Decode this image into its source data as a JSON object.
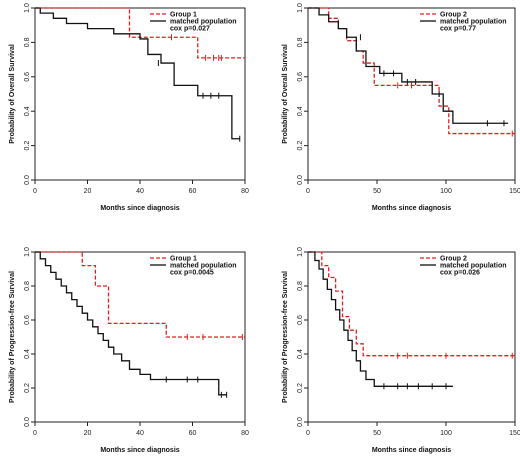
{
  "chart_data": [
    {
      "type": "line",
      "xlabel": "Months since diagnosis",
      "ylabel": "Probability of Overall Survival",
      "xlim": [
        0,
        80
      ],
      "ylim": [
        0,
        1
      ],
      "xticks": [
        "0",
        "20",
        "40",
        "60",
        "80"
      ],
      "yticks": [
        "0.0",
        "0.2",
        "0.4",
        "0.6",
        "0.8",
        "1.0"
      ],
      "legend": {
        "position": "top-right",
        "entries": [
          "Group 1",
          "matched population"
        ],
        "pvalue": "cox p=0.027"
      },
      "series": [
        {
          "name": "Group 1",
          "color": "#e02020",
          "dash": true,
          "x": [
            0,
            36,
            62,
            80
          ],
          "y": [
            1.0,
            0.83,
            0.71,
            0.71
          ],
          "censors": [
            [
              52,
              0.83
            ],
            [
              65,
              0.71
            ],
            [
              68,
              0.71
            ],
            [
              70,
              0.71
            ],
            [
              71,
              0.71
            ]
          ]
        },
        {
          "name": "matched population",
          "color": "#111111",
          "dash": false,
          "x": [
            0,
            2,
            7,
            12,
            20,
            30,
            40,
            43,
            48,
            53,
            62,
            73,
            75,
            78
          ],
          "y": [
            1.0,
            0.97,
            0.94,
            0.91,
            0.88,
            0.85,
            0.82,
            0.73,
            0.68,
            0.55,
            0.49,
            0.49,
            0.24,
            0.24
          ],
          "censors": [
            [
              47,
              0.68
            ],
            [
              64,
              0.49
            ],
            [
              67,
              0.49
            ],
            [
              70,
              0.49
            ],
            [
              78,
              0.24
            ]
          ]
        }
      ]
    },
    {
      "type": "line",
      "xlabel": "Months since diagnosis",
      "ylabel": "Probability of Overall Survival",
      "xlim": [
        0,
        150
      ],
      "ylim": [
        0,
        1
      ],
      "xticks": [
        "0",
        "50",
        "100",
        "150"
      ],
      "yticks": [
        "0.0",
        "0.2",
        "0.4",
        "0.6",
        "0.8",
        "1.0"
      ],
      "legend": {
        "position": "top-right",
        "entries": [
          "Group 2",
          "matched population"
        ],
        "pvalue": "cox p=0.77"
      },
      "series": [
        {
          "name": "Group 2",
          "color": "#e02020",
          "dash": true,
          "x": [
            0,
            15,
            22,
            28,
            35,
            40,
            48,
            55,
            70,
            85,
            95,
            102,
            150
          ],
          "y": [
            1.0,
            0.94,
            0.88,
            0.81,
            0.75,
            0.68,
            0.55,
            0.55,
            0.55,
            0.55,
            0.43,
            0.27,
            0.27
          ],
          "censors": [
            [
              65,
              0.55
            ],
            [
              75,
              0.55
            ],
            [
              148,
              0.27
            ]
          ]
        },
        {
          "name": "matched population",
          "color": "#111111",
          "dash": false,
          "x": [
            0,
            8,
            15,
            22,
            28,
            35,
            42,
            52,
            58,
            68,
            80,
            90,
            98,
            105,
            145
          ],
          "y": [
            1.0,
            0.96,
            0.92,
            0.88,
            0.83,
            0.75,
            0.66,
            0.62,
            0.62,
            0.57,
            0.57,
            0.5,
            0.4,
            0.33,
            0.33
          ],
          "censors": [
            [
              38,
              0.83
            ],
            [
              55,
              0.62
            ],
            [
              62,
              0.62
            ],
            [
              72,
              0.57
            ],
            [
              78,
              0.57
            ],
            [
              95,
              0.5
            ],
            [
              130,
              0.33
            ],
            [
              142,
              0.33
            ]
          ]
        }
      ]
    },
    {
      "type": "line",
      "xlabel": "Months since diagnosis",
      "ylabel": "Probability of Progression-free Survival",
      "xlim": [
        0,
        80
      ],
      "ylim": [
        0,
        1
      ],
      "xticks": [
        "0",
        "20",
        "40",
        "60",
        "80"
      ],
      "yticks": [
        "0.0",
        "0.2",
        "0.4",
        "0.6",
        "0.8",
        "1.0"
      ],
      "legend": {
        "position": "top-right",
        "entries": [
          "Group 1",
          "matched population"
        ],
        "pvalue": "cox p=0.0045"
      },
      "series": [
        {
          "name": "Group 1",
          "color": "#e02020",
          "dash": true,
          "x": [
            0,
            18,
            23,
            28,
            50,
            80
          ],
          "y": [
            1.0,
            0.92,
            0.8,
            0.58,
            0.5,
            0.5
          ],
          "censors": [
            [
              58,
              0.5
            ],
            [
              64,
              0.5
            ],
            [
              79,
              0.5
            ]
          ]
        },
        {
          "name": "matched population",
          "color": "#111111",
          "dash": false,
          "x": [
            0,
            2,
            4,
            6,
            8,
            10,
            12,
            14,
            16,
            18,
            20,
            22,
            24,
            26,
            28,
            30,
            33,
            36,
            40,
            44,
            54,
            66,
            70,
            73
          ],
          "y": [
            1.0,
            0.96,
            0.92,
            0.88,
            0.84,
            0.8,
            0.76,
            0.72,
            0.68,
            0.64,
            0.6,
            0.56,
            0.52,
            0.48,
            0.44,
            0.4,
            0.36,
            0.31,
            0.28,
            0.25,
            0.25,
            0.25,
            0.16,
            0.16
          ],
          "censors": [
            [
              50,
              0.25
            ],
            [
              58,
              0.25
            ],
            [
              62,
              0.25
            ],
            [
              71,
              0.16
            ],
            [
              73,
              0.16
            ]
          ]
        }
      ]
    },
    {
      "type": "line",
      "xlabel": "Months since diagnosis",
      "ylabel": "Probability of Progression-free Survival",
      "xlim": [
        0,
        150
      ],
      "ylim": [
        0,
        1
      ],
      "xticks": [
        "0",
        "50",
        "100",
        "150"
      ],
      "yticks": [
        "0.0",
        "0.2",
        "0.4",
        "0.6",
        "0.8",
        "1.0"
      ],
      "legend": {
        "position": "top-right",
        "entries": [
          "Group 2",
          "matched population"
        ],
        "pvalue": "cox p=0.026"
      },
      "series": [
        {
          "name": "Group 2",
          "color": "#e02020",
          "dash": true,
          "x": [
            0,
            10,
            15,
            20,
            25,
            30,
            35,
            40,
            150
          ],
          "y": [
            1.0,
            0.92,
            0.85,
            0.77,
            0.62,
            0.54,
            0.46,
            0.39,
            0.39
          ],
          "censors": [
            [
              65,
              0.39
            ],
            [
              72,
              0.39
            ],
            [
              100,
              0.39
            ],
            [
              148,
              0.39
            ]
          ]
        },
        {
          "name": "matched population",
          "color": "#111111",
          "dash": false,
          "x": [
            0,
            5,
            8,
            11,
            14,
            17,
            20,
            23,
            26,
            29,
            32,
            35,
            38,
            42,
            48,
            105
          ],
          "y": [
            1.0,
            0.95,
            0.9,
            0.84,
            0.78,
            0.72,
            0.66,
            0.6,
            0.54,
            0.48,
            0.42,
            0.36,
            0.3,
            0.25,
            0.21,
            0.21
          ],
          "censors": [
            [
              55,
              0.21
            ],
            [
              65,
              0.21
            ],
            [
              72,
              0.21
            ],
            [
              80,
              0.21
            ],
            [
              90,
              0.21
            ],
            [
              100,
              0.21
            ]
          ]
        }
      ]
    }
  ]
}
